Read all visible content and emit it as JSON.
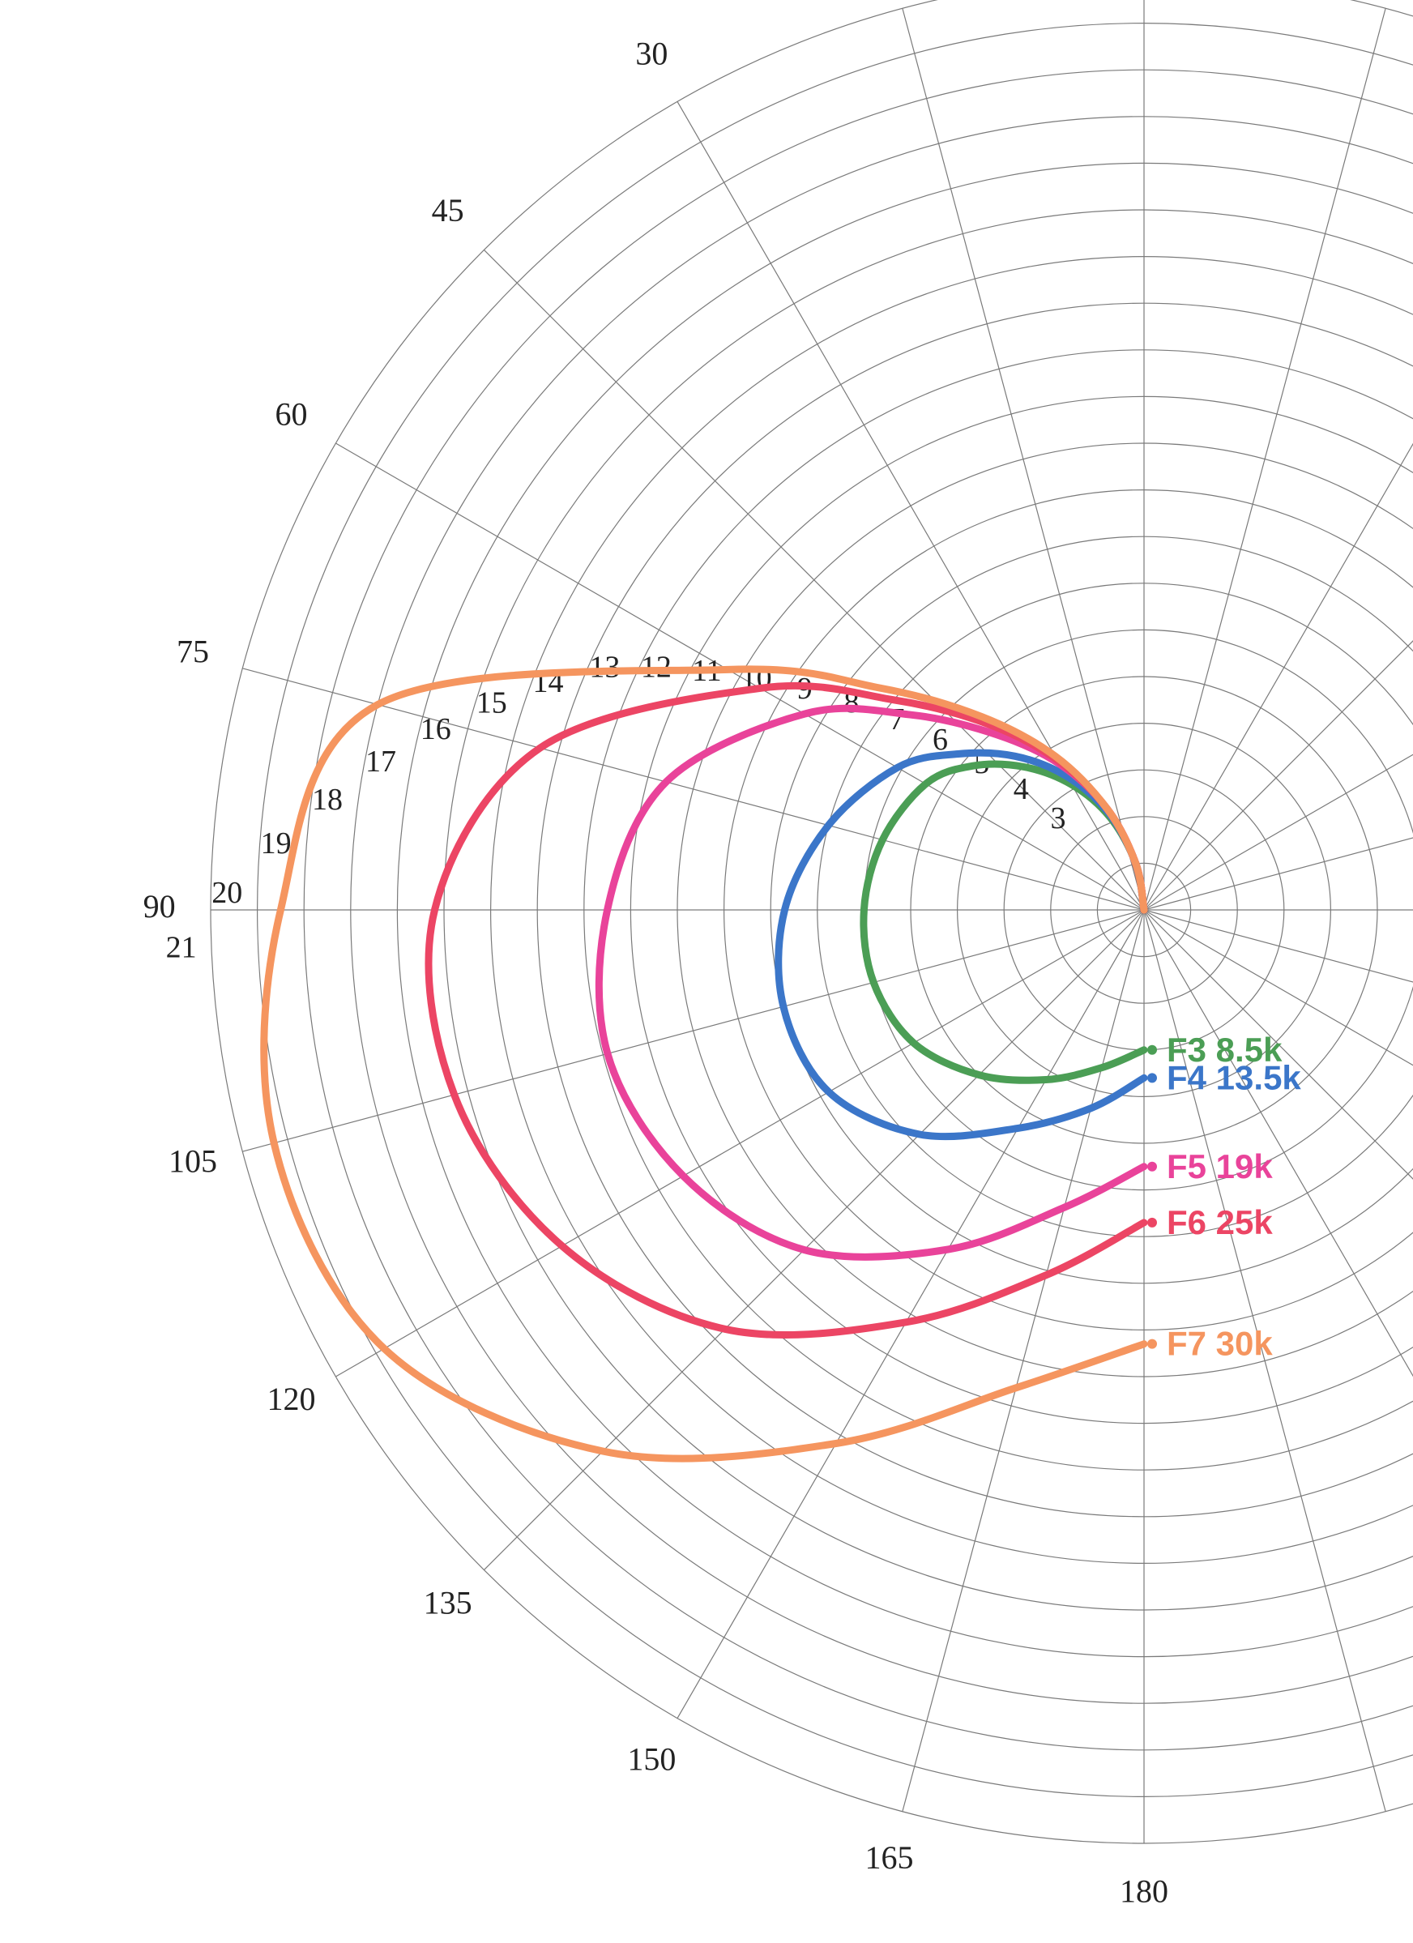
{
  "chart_data": {
    "type": "line",
    "coordinate_system": "polar",
    "angle_ticks": [
      30,
      45,
      60,
      75,
      90,
      105,
      120,
      135,
      150,
      165,
      180
    ],
    "radial_labels": [
      3,
      4,
      5,
      6,
      7,
      8,
      9,
      10,
      11,
      12,
      13,
      14,
      15,
      16,
      17,
      18,
      19,
      20,
      21
    ],
    "grid": true,
    "series": [
      {
        "name": "F3 8.5k",
        "color": "#4b9e55",
        "points": [
          [
            0,
            0
          ],
          [
            10,
            1.0
          ],
          [
            20,
            2.1
          ],
          [
            30,
            3.1
          ],
          [
            40,
            4.0
          ],
          [
            50,
            4.8
          ],
          [
            60,
            5.4
          ],
          [
            75,
            5.8
          ],
          [
            90,
            6.0
          ],
          [
            105,
            6.0
          ],
          [
            120,
            5.7
          ],
          [
            135,
            5.0
          ],
          [
            150,
            4.2
          ],
          [
            165,
            3.5
          ],
          [
            180,
            3.0
          ]
        ]
      },
      {
        "name": "F4 13.5k",
        "color": "#3b76c9",
        "points": [
          [
            0,
            0
          ],
          [
            10,
            1.0
          ],
          [
            20,
            2.2
          ],
          [
            30,
            3.3
          ],
          [
            40,
            4.3
          ],
          [
            50,
            5.2
          ],
          [
            60,
            6.1
          ],
          [
            75,
            7.0
          ],
          [
            90,
            7.7
          ],
          [
            105,
            8.0
          ],
          [
            120,
            7.8
          ],
          [
            135,
            6.8
          ],
          [
            150,
            5.4
          ],
          [
            165,
            4.4
          ],
          [
            180,
            3.6
          ]
        ]
      },
      {
        "name": "F5 19k",
        "color": "#e9439a",
        "points": [
          [
            0,
            0
          ],
          [
            10,
            1.0
          ],
          [
            20,
            2.3
          ],
          [
            30,
            3.6
          ],
          [
            40,
            4.9
          ],
          [
            50,
            6.5
          ],
          [
            60,
            8.4
          ],
          [
            75,
            10.6
          ],
          [
            90,
            11.5
          ],
          [
            105,
            11.9
          ],
          [
            120,
            11.4
          ],
          [
            135,
            10.3
          ],
          [
            150,
            8.4
          ],
          [
            165,
            6.6
          ],
          [
            180,
            5.5
          ]
        ]
      },
      {
        "name": "F6 25k",
        "color": "#ec4564",
        "points": [
          [
            0,
            0
          ],
          [
            10,
            1.0
          ],
          [
            20,
            2.3
          ],
          [
            30,
            3.7
          ],
          [
            40,
            5.2
          ],
          [
            50,
            7.0
          ],
          [
            60,
            9.5
          ],
          [
            75,
            13.4
          ],
          [
            90,
            15.2
          ],
          [
            105,
            15.3
          ],
          [
            120,
            14.4
          ],
          [
            135,
            12.7
          ],
          [
            150,
            10.2
          ],
          [
            165,
            8.1
          ],
          [
            180,
            6.7
          ]
        ]
      },
      {
        "name": "F7 30k",
        "color": "#f5955f",
        "points": [
          [
            0,
            0
          ],
          [
            10,
            1.0
          ],
          [
            20,
            2.3
          ],
          [
            30,
            3.8
          ],
          [
            40,
            5.4
          ],
          [
            50,
            7.4
          ],
          [
            60,
            10.3
          ],
          [
            75,
            17.0
          ],
          [
            90,
            18.5
          ],
          [
            105,
            19.3
          ],
          [
            120,
            18.8
          ],
          [
            135,
            16.4
          ],
          [
            150,
            13.2
          ],
          [
            165,
            10.6
          ],
          [
            180,
            9.3
          ]
        ]
      }
    ]
  }
}
